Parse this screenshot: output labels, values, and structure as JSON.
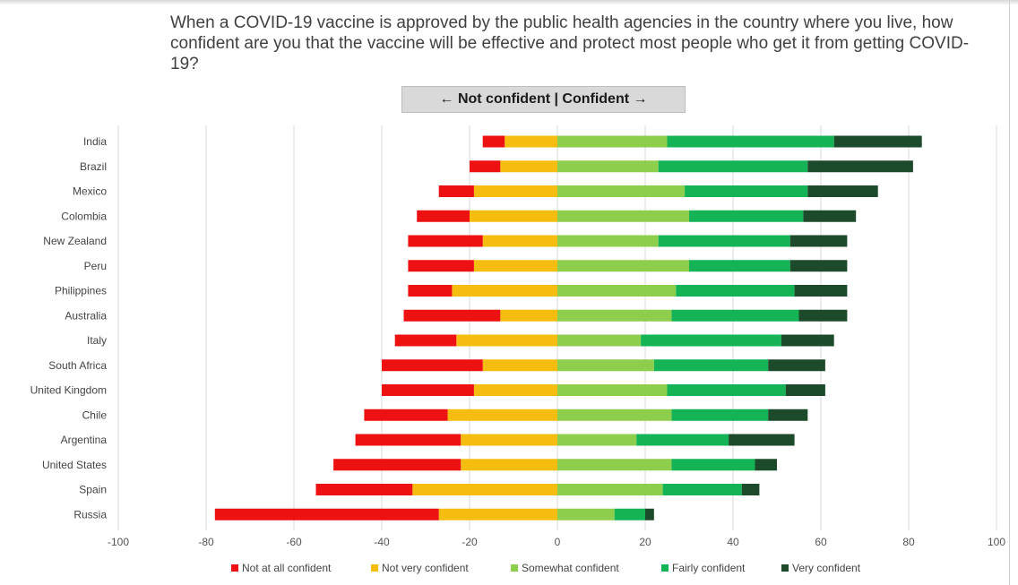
{
  "title": "When a COVID-19 vaccine is approved by the public health agencies in the country where you live, how confident are you that the vaccine will be effective and protect most people who get it from getting COVID-19?",
  "banner": "← Not confident | Confident →",
  "colors": {
    "not_at_all": "#ee1111",
    "not_very": "#f5bd10",
    "somewhat": "#8dce4c",
    "fairly": "#13b356",
    "very": "#1d4a2b"
  },
  "chart_data": {
    "type": "bar",
    "orientation": "horizontal",
    "stacked": "diverging",
    "categories": [
      "India",
      "Brazil",
      "Mexico",
      "Colombia",
      "New Zealand",
      "Peru",
      "Philippines",
      "Australia",
      "Italy",
      "South Africa",
      "United Kingdom",
      "Chile",
      "Argentina",
      "United States",
      "Spain",
      "Russia"
    ],
    "series": [
      {
        "name": "Not at all confident",
        "side": "negative",
        "values": [
          5,
          7,
          8,
          12,
          17,
          15,
          10,
          22,
          14,
          23,
          21,
          19,
          24,
          29,
          22,
          51
        ]
      },
      {
        "name": "Not very confident",
        "side": "negative",
        "values": [
          12,
          13,
          19,
          20,
          17,
          19,
          24,
          13,
          23,
          17,
          19,
          25,
          22,
          22,
          33,
          27
        ]
      },
      {
        "name": "Somewhat confident",
        "side": "positive",
        "values": [
          25,
          23,
          29,
          30,
          23,
          30,
          27,
          26,
          19,
          22,
          25,
          26,
          18,
          26,
          24,
          13
        ]
      },
      {
        "name": "Fairly confident",
        "side": "positive",
        "values": [
          38,
          34,
          28,
          26,
          30,
          23,
          27,
          29,
          32,
          26,
          27,
          22,
          21,
          19,
          18,
          7
        ]
      },
      {
        "name": "Very confident",
        "side": "positive",
        "values": [
          20,
          24,
          16,
          12,
          13,
          13,
          12,
          11,
          12,
          13,
          9,
          9,
          15,
          5,
          4,
          2
        ]
      }
    ],
    "xlim": [
      -100,
      100
    ],
    "xticks": [
      -100,
      -80,
      -60,
      -40,
      -20,
      0,
      20,
      40,
      60,
      80,
      100
    ],
    "xlabel": "",
    "ylabel": "",
    "grid": "vertical",
    "legend": "bottom"
  }
}
